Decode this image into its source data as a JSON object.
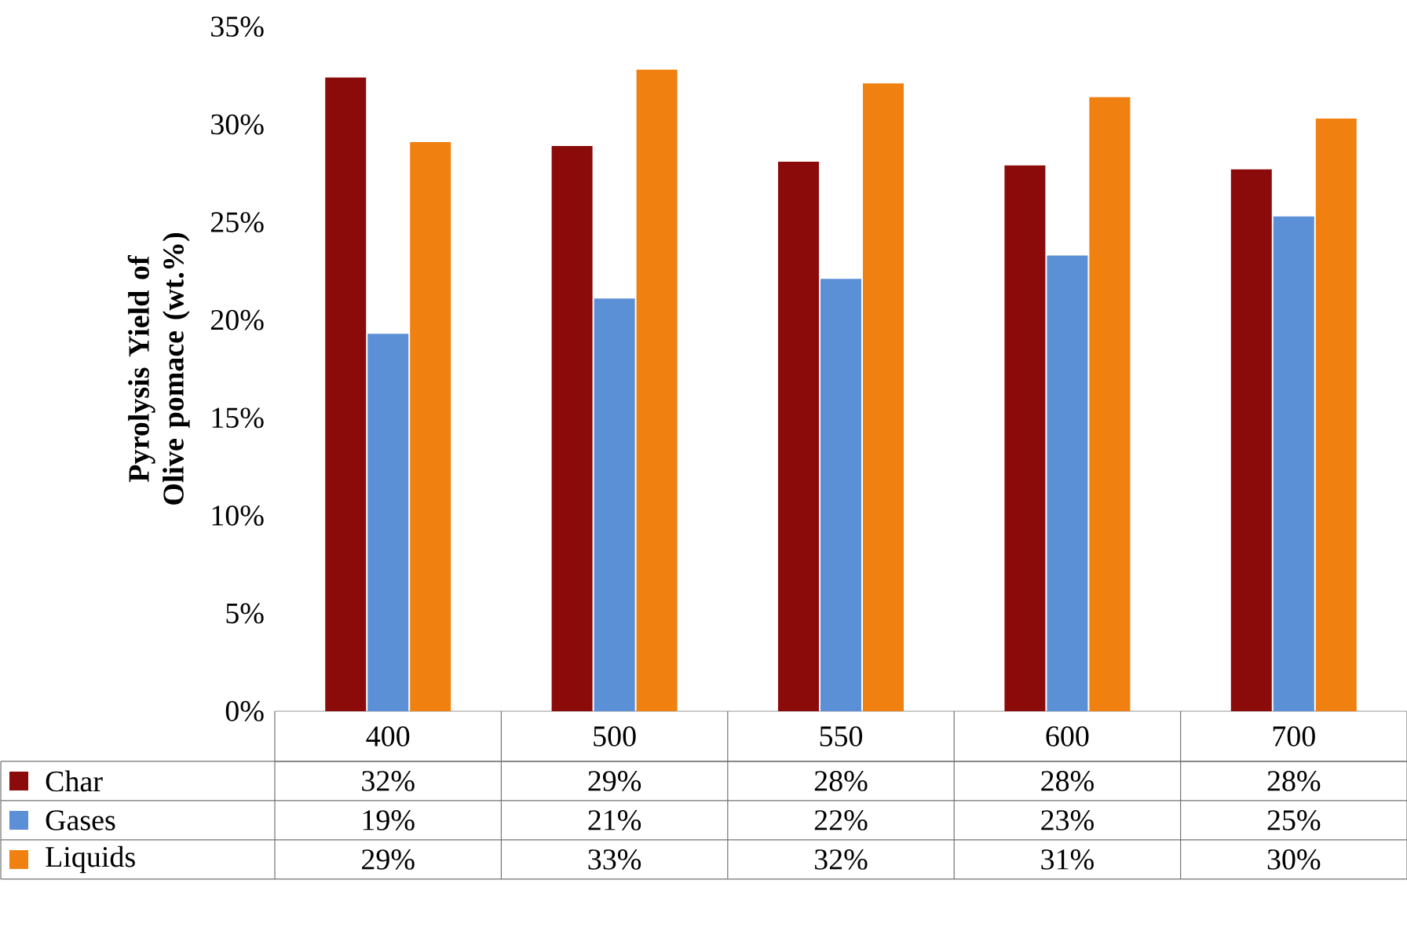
{
  "chart_data": {
    "type": "bar",
    "ylabel": "Pyrolysis Yield of Olive pomace (wt.%)",
    "categories": [
      "400",
      "500",
      "550",
      "600",
      "700"
    ],
    "series": [
      {
        "name": "Char",
        "color": "#8b0a0a",
        "values": [
          32.4,
          28.9,
          28.1,
          27.9,
          27.7
        ],
        "value_labels": [
          "32%",
          "29%",
          "28%",
          "28%",
          "28%"
        ]
      },
      {
        "name": "Gases",
        "color": "#5b8fd6",
        "values": [
          19.3,
          21.1,
          22.1,
          23.3,
          25.3
        ],
        "value_labels": [
          "19%",
          "21%",
          "22%",
          "23%",
          "25%"
        ]
      },
      {
        "name": "Liquids",
        "color": "#f08010",
        "values": [
          29.1,
          32.8,
          32.1,
          31.4,
          30.3
        ],
        "value_labels": [
          "29%",
          "33%",
          "32%",
          "31%",
          "30%"
        ]
      }
    ],
    "ylim": [
      0,
      35
    ],
    "legend": "bottom left",
    "yticks": [
      {
        "value": 0,
        "label": "0%"
      },
      {
        "value": 5,
        "label": "5%"
      },
      {
        "value": 10,
        "label": "10%"
      },
      {
        "value": 15,
        "label": "15%"
      },
      {
        "value": 20,
        "label": "20%"
      },
      {
        "value": 25,
        "label": "25%"
      },
      {
        "value": 30,
        "label": "30%"
      },
      {
        "value": 35,
        "label": "35%"
      }
    ]
  }
}
